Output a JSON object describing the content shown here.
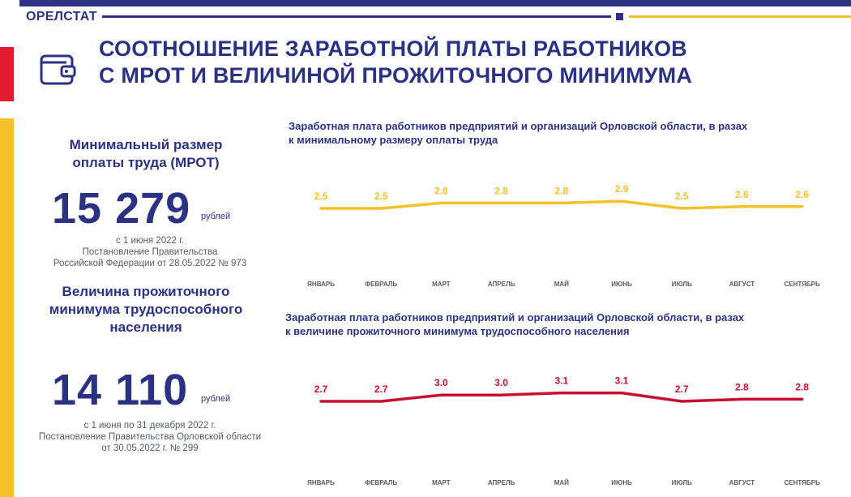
{
  "header": {
    "brand": "ОРЕЛСТАТ",
    "title_line1": "СООТНОШЕНИЕ ЗАРАБОТНОЙ ПЛАТЫ РАБОТНИКОВ",
    "title_line2": "С МРОТ И ВЕЛИЧИНОЙ ПРОЖИТОЧНОГО МИНИМУМА",
    "icon": "wallet-icon"
  },
  "colors": {
    "brand_blue": "#2b3283",
    "accent_red": "#e11c2f",
    "accent_yellow": "#f6c029",
    "series_yellow": "#f6c029",
    "series_red": "#c8102e"
  },
  "mrot": {
    "heading_line1": "Минимальный размер",
    "heading_line2": "оплаты труда (МРОТ)",
    "value": "15 279",
    "unit": "рублей",
    "note_line1": "с 1 июня 2022 г.",
    "note_line2": "Постановление Правительства",
    "note_line3": "Российской Федерации от 28.05.2022 № 973"
  },
  "subsistence": {
    "heading_line1": "Величина прожиточного",
    "heading_line2": "минимума трудоспособного",
    "heading_line3": "населения",
    "value": "14 110",
    "unit": "рублей",
    "note_line1": "с 1 июня по 31 декабря 2022 г.",
    "note_line2": "Постановление Правительства Орловской области",
    "note_line3": "от 30.05.2022 г. № 299"
  },
  "chart_data": [
    {
      "type": "line",
      "title_line1": "Заработная плата работников предприятий и организаций Орловской области, в разах",
      "title_line2": "к минимальному размеру оплаты труда",
      "categories": [
        "ЯНВАРЬ",
        "ФЕВРАЛЬ",
        "МАРТ",
        "АПРЕЛЬ",
        "МАЙ",
        "ИЮНЬ",
        "ИЮЛЬ",
        "АВГУСТ",
        "СЕНТЯБРЬ"
      ],
      "values": [
        2.5,
        2.5,
        2.8,
        2.8,
        2.8,
        2.9,
        2.5,
        2.6,
        2.6
      ],
      "labels": [
        "2.5",
        "2.5",
        "2.8",
        "2.8",
        "2.8",
        "2.9",
        "2.5",
        "2.6",
        "2.6"
      ],
      "color": "#f6c029",
      "xlabel": "",
      "ylabel": ""
    },
    {
      "type": "line",
      "title_line1": "Заработная плата работников предприятий и организаций Орловской области, в разах",
      "title_line2": "к величине прожиточного минимума трудоспособного населения",
      "categories": [
        "ЯНВАРЬ",
        "ФЕВРАЛЬ",
        "МАРТ",
        "АПРЕЛЬ",
        "МАЙ",
        "ИЮНЬ",
        "ИЮЛЬ",
        "АВГУСТ",
        "СЕНТЯБРЬ"
      ],
      "values": [
        2.7,
        2.7,
        3.0,
        3.0,
        3.1,
        3.1,
        2.7,
        2.8,
        2.8
      ],
      "labels": [
        "2.7",
        "2.7",
        "3.0",
        "3.0",
        "3.1",
        "3.1",
        "2.7",
        "2.8",
        "2.8"
      ],
      "color": "#c8102e",
      "xlabel": "",
      "ylabel": ""
    }
  ]
}
